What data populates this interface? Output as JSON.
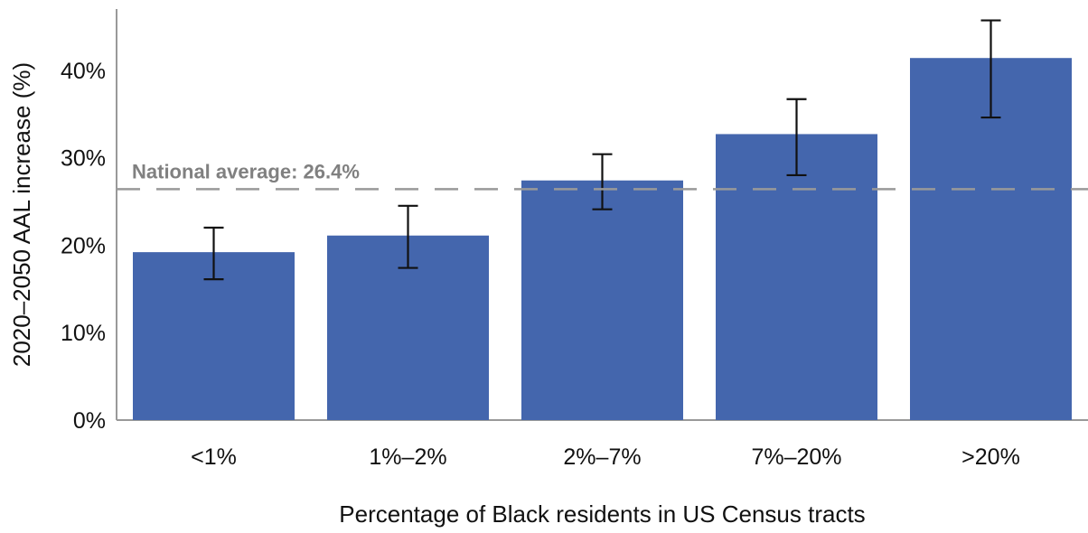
{
  "chart_data": {
    "type": "bar",
    "title": "",
    "xlabel": "Percentage of Black residents in US Census tracts",
    "ylabel": "2020–2050 AAL increase (%)",
    "categories": [
      "<1%",
      "1%–2%",
      "2%–7%",
      "7%–20%",
      ">20%"
    ],
    "values": [
      19.2,
      21.1,
      27.4,
      32.7,
      41.4
    ],
    "error_low": [
      16.1,
      17.4,
      24.1,
      28.0,
      34.6
    ],
    "error_high": [
      22.0,
      24.5,
      30.4,
      36.7,
      45.7
    ],
    "ylim": [
      0,
      47
    ],
    "yticks": [
      0,
      10,
      20,
      30,
      40
    ],
    "ytick_labels": [
      "0%",
      "10%",
      "20%",
      "30%",
      "40%"
    ],
    "reference_line": {
      "value": 26.4,
      "label": "National average: 26.4%",
      "color": "#999999",
      "label_color": "#808080"
    },
    "bar_color": "#4466ad",
    "error_bar_color": "#111111",
    "grid": false,
    "legend": "none"
  }
}
